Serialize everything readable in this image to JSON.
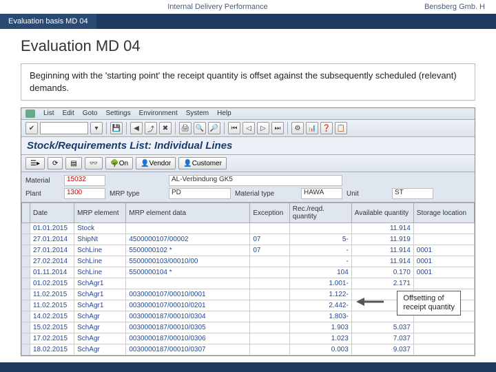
{
  "header": {
    "center": "Internal Delivery Performance",
    "right": "Bensberg Gmb. H",
    "tab": "Evaluation basis MD 04"
  },
  "page": {
    "title": "Evaluation MD 04",
    "desc": "Beginning with the 'starting point' the receipt quantity is offset against the subsequently scheduled (relevant) demands."
  },
  "sap": {
    "menu": [
      "List",
      "Edit",
      "Goto",
      "Settings",
      "Environment",
      "System",
      "Help"
    ],
    "subtitle_text": "Stock/Requirements List: Individual Lines",
    "subtoolbar": {
      "on": "On",
      "vendor": "Vendor",
      "customer": "Customer"
    },
    "hgrid": {
      "material_lbl": "Material",
      "material_val": "15032",
      "material_desc": "AL-Verbindung GK5",
      "plant_lbl": "Plant",
      "plant_val": "1300",
      "mrptype_lbl": "MRP type",
      "mrptype_val": "PD",
      "mattype_lbl": "Material type",
      "mattype_val": "HAWA",
      "unit_lbl": "Unit",
      "unit_val": "ST"
    },
    "columns": [
      "Date",
      "MRP element",
      "MRP element data",
      "Exception",
      "Rec./reqd. quantity",
      "Available quantity",
      "Storage location"
    ],
    "rows": [
      {
        "date": "01.01.2015",
        "el": "Stock",
        "data": "",
        "exc": "",
        "qty": "",
        "avail": "11.914",
        "loc": ""
      },
      {
        "date": "27.01.2014",
        "el": "ShipNt",
        "data": "4500000107/00002",
        "exc": "07",
        "qty": "5-",
        "avail": "11.919",
        "loc": ""
      },
      {
        "date": "27.01.2014",
        "el": "SchLine",
        "data": "5500000102 *",
        "exc": "07",
        "qty": "-",
        "avail": "11.914",
        "loc": "0001"
      },
      {
        "date": "27.02.2014",
        "el": "SchLine",
        "data": "5500000103/00010/00",
        "exc": "",
        "qty": "-",
        "avail": "11.914",
        "loc": "0001"
      },
      {
        "date": "01.11.2014",
        "el": "SchLine",
        "data": "5500000104 *",
        "exc": "",
        "qty": "104",
        "avail": "0.170",
        "loc": "0001"
      },
      {
        "date": "01.02.2015",
        "el": "SchAgr1",
        "data": "",
        "exc": "",
        "qty": "1.001-",
        "avail": "2.171",
        "loc": ""
      },
      {
        "date": "11.02.2015",
        "el": "SchAgr1",
        "data": "0030000107/00010/0001",
        "exc": "",
        "qty": "1.122-",
        "avail": "",
        "loc": ""
      },
      {
        "date": "11.02.2015",
        "el": "SchAgr1",
        "data": "0030000107/00010/0201",
        "exc": "",
        "qty": "2.442-",
        "avail": "",
        "loc": ""
      },
      {
        "date": "14.02.2015",
        "el": "SchAgr",
        "data": "0030000187/00010/0304",
        "exc": "",
        "qty": "1.803-",
        "avail": "",
        "loc": ""
      },
      {
        "date": "15.02.2015",
        "el": "SchAgr",
        "data": "0030000187/00010/0305",
        "exc": "",
        "qty": "1.903",
        "avail": "5.037",
        "loc": ""
      },
      {
        "date": "17.02.2015",
        "el": "SchAgr",
        "data": "0030000187/00010/0306",
        "exc": "",
        "qty": "1.023",
        "avail": "7.037",
        "loc": ""
      },
      {
        "date": "18.02.2015",
        "el": "SchAgr",
        "data": "0030000187/00010/0307",
        "exc": "",
        "qty": "0.003",
        "avail": "9.037",
        "loc": ""
      }
    ]
  },
  "callout": {
    "line1": "Offsetting of",
    "line2": "receipt quantity"
  }
}
